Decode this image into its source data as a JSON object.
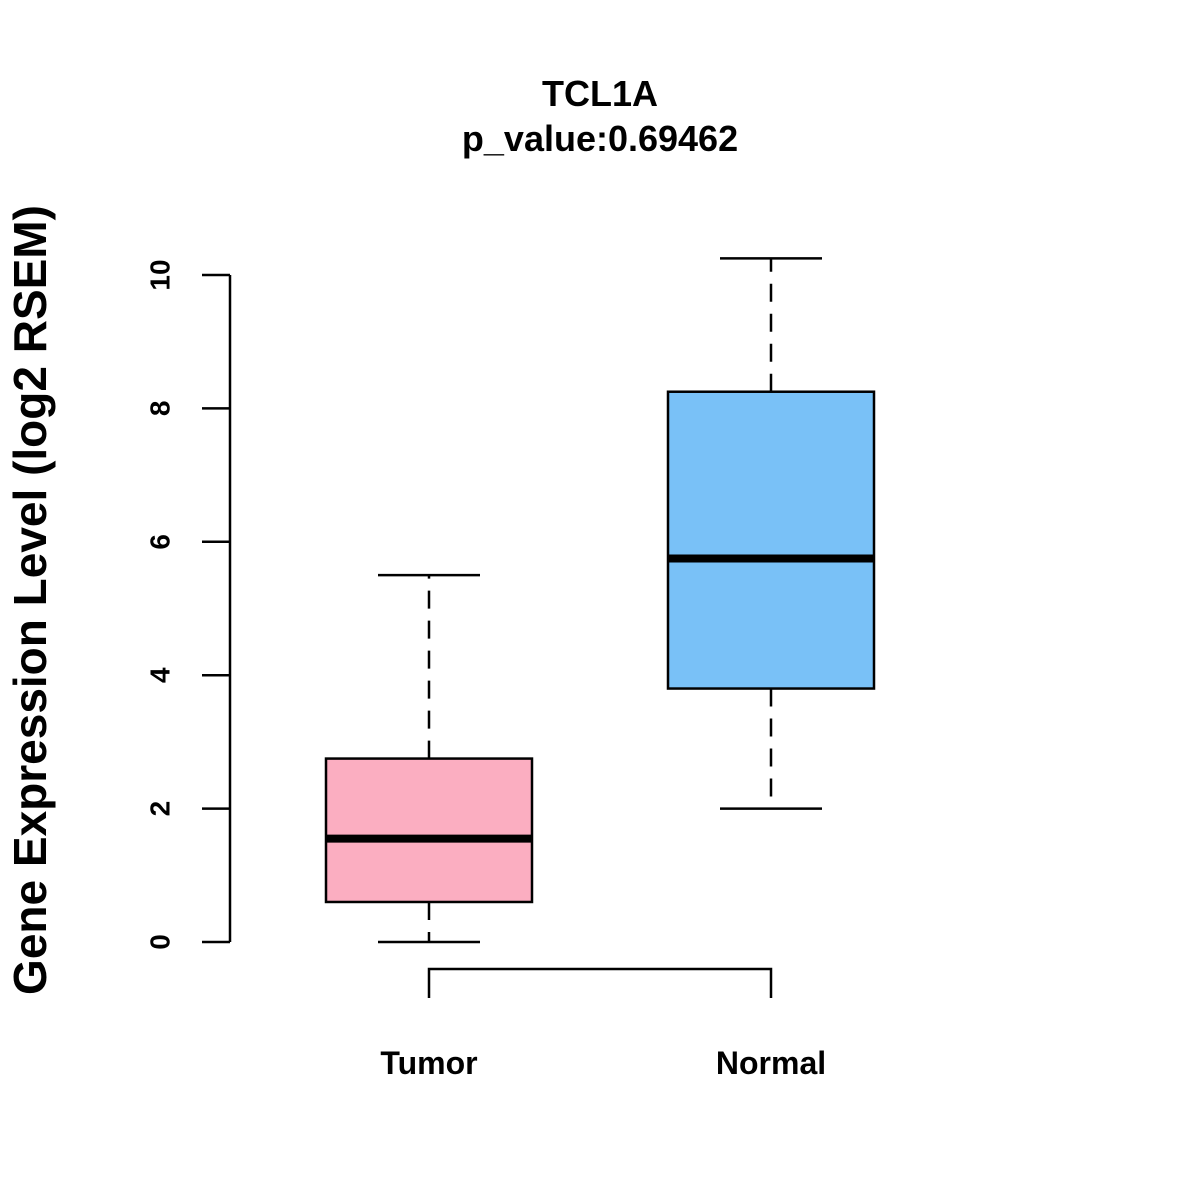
{
  "chart_data": {
    "type": "boxplot",
    "title": "TCL1A",
    "subtitle": "p_value:0.69462",
    "xlabel": "",
    "ylabel": "Gene Expression Level (log2 RSEM)",
    "ylim": [
      0,
      10
    ],
    "yticks": [
      "0",
      "2",
      "4",
      "6",
      "8",
      "10"
    ],
    "grid": false,
    "categories": [
      "Tumor",
      "Normal"
    ],
    "series": [
      {
        "name": "Tumor",
        "min": 0.0,
        "q1": 0.6,
        "median": 1.55,
        "q3": 2.75,
        "max": 5.5,
        "color": "#FBAEC1"
      },
      {
        "name": "Normal",
        "min": 2.0,
        "q1": 3.8,
        "median": 5.75,
        "q3": 8.25,
        "max": 10.25,
        "color": "#79C1F7"
      }
    ],
    "comparison_bracket": [
      "Tumor",
      "Normal"
    ]
  }
}
